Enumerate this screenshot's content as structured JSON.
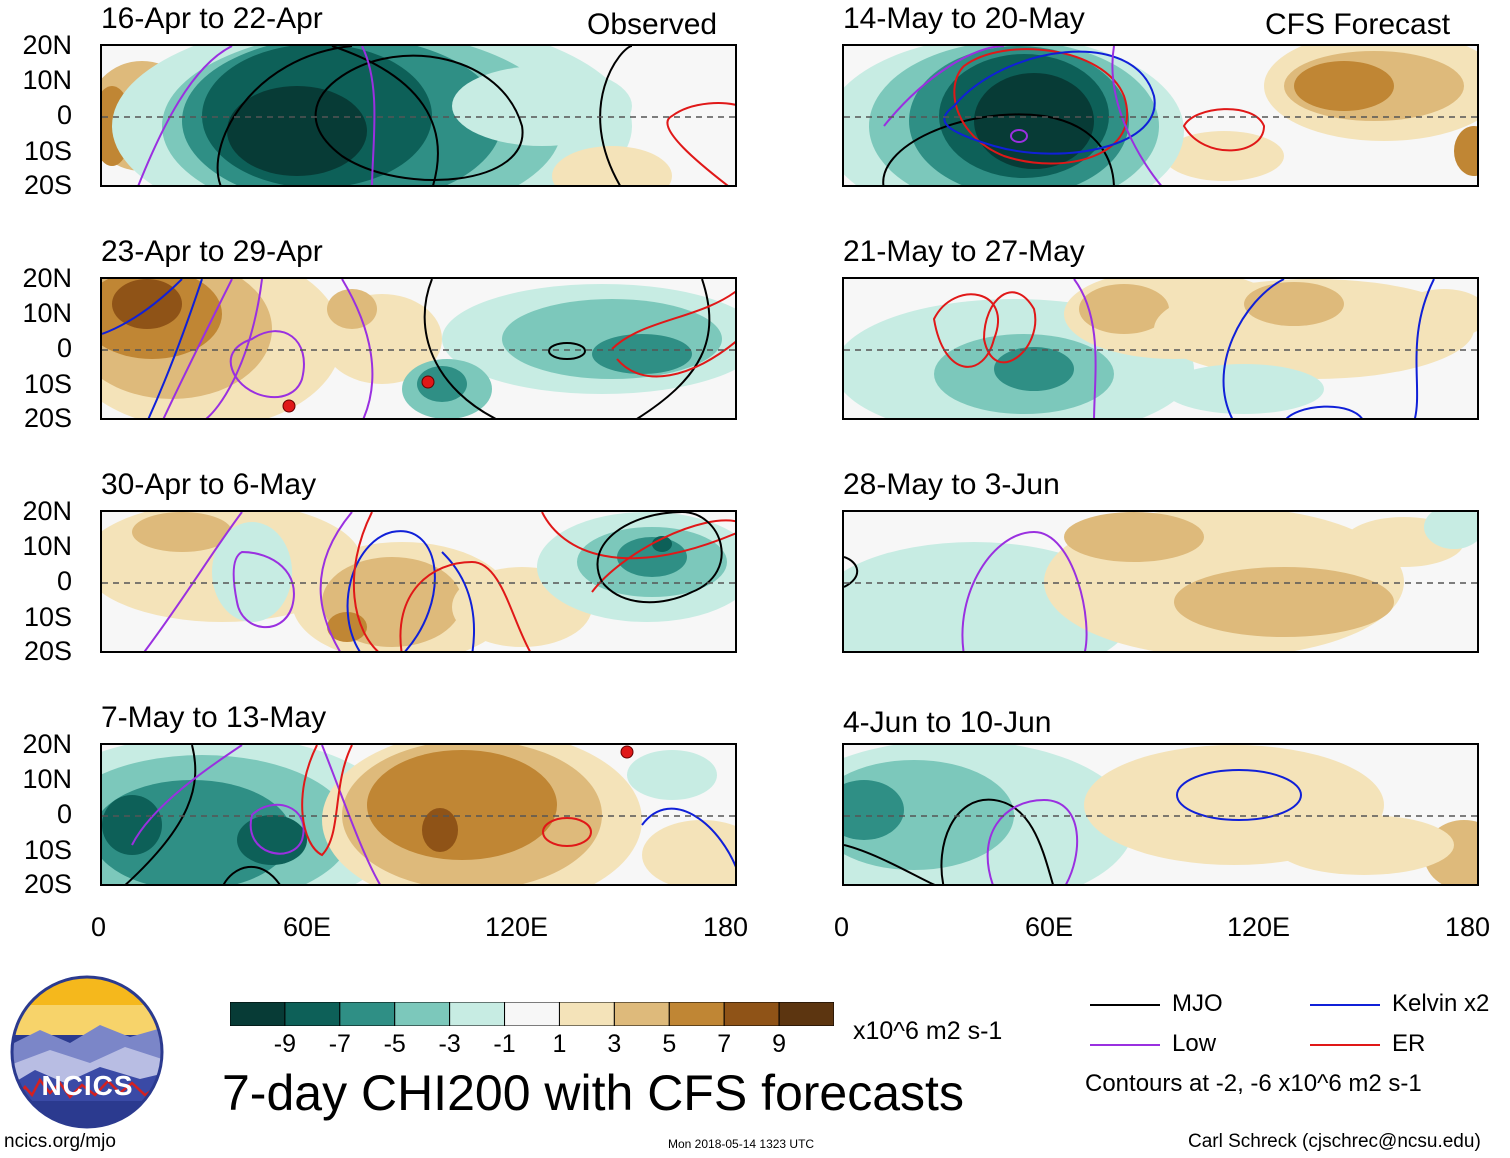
{
  "panels": {
    "observed_label": "Observed",
    "forecast_label": "CFS Forecast",
    "observed": [
      {
        "title": "16-Apr to 22-Apr"
      },
      {
        "title": "23-Apr to 29-Apr"
      },
      {
        "title": "30-Apr to 6-May"
      },
      {
        "title": "7-May to 13-May"
      }
    ],
    "forecast": [
      {
        "title": "14-May to 20-May"
      },
      {
        "title": "21-May to 27-May"
      },
      {
        "title": "28-May to 3-Jun"
      },
      {
        "title": "4-Jun to 10-Jun"
      }
    ]
  },
  "axes": {
    "lat_labels": [
      "20N",
      "10N",
      "0",
      "10S",
      "20S"
    ],
    "lon_labels": [
      "0",
      "60E",
      "120E",
      "180"
    ]
  },
  "chart_data": {
    "type": "heatmap",
    "title": "7-day CHI200 with CFS forecasts",
    "variable": "CHI200 anomaly",
    "units": "x10^6 m2 s-1",
    "x_range": [
      0,
      180
    ],
    "y_range": [
      -20,
      20
    ],
    "colorbar": {
      "ticks": [
        "-9",
        "-7",
        "-5",
        "-3",
        "-1",
        "1",
        "3",
        "5",
        "7",
        "9"
      ],
      "colors": [
        "#073b36",
        "#0d6058",
        "#2f8f85",
        "#7cc8bb",
        "#c7ece3",
        "#f7f7f7",
        "#f4e3b9",
        "#deba7b",
        "#c08634",
        "#8f5317",
        "#5c3510"
      ]
    },
    "contours": {
      "series": [
        {
          "name": "MJO",
          "color": "#000000"
        },
        {
          "name": "Low",
          "color": "#9a30e0"
        },
        {
          "name": "Kelvin x2",
          "color": "#1020d8"
        },
        {
          "name": "ER",
          "color": "#e01818"
        }
      ],
      "note": "Contours at -2, -6 x10^6 m2 s-1"
    }
  },
  "footer": {
    "logo_text": "NCICS",
    "url": "ncics.org/mjo",
    "timestamp": "Mon 2018-05-14 1323 UTC",
    "credit": "Carl Schreck (cjschrec@ncsu.edu)"
  }
}
